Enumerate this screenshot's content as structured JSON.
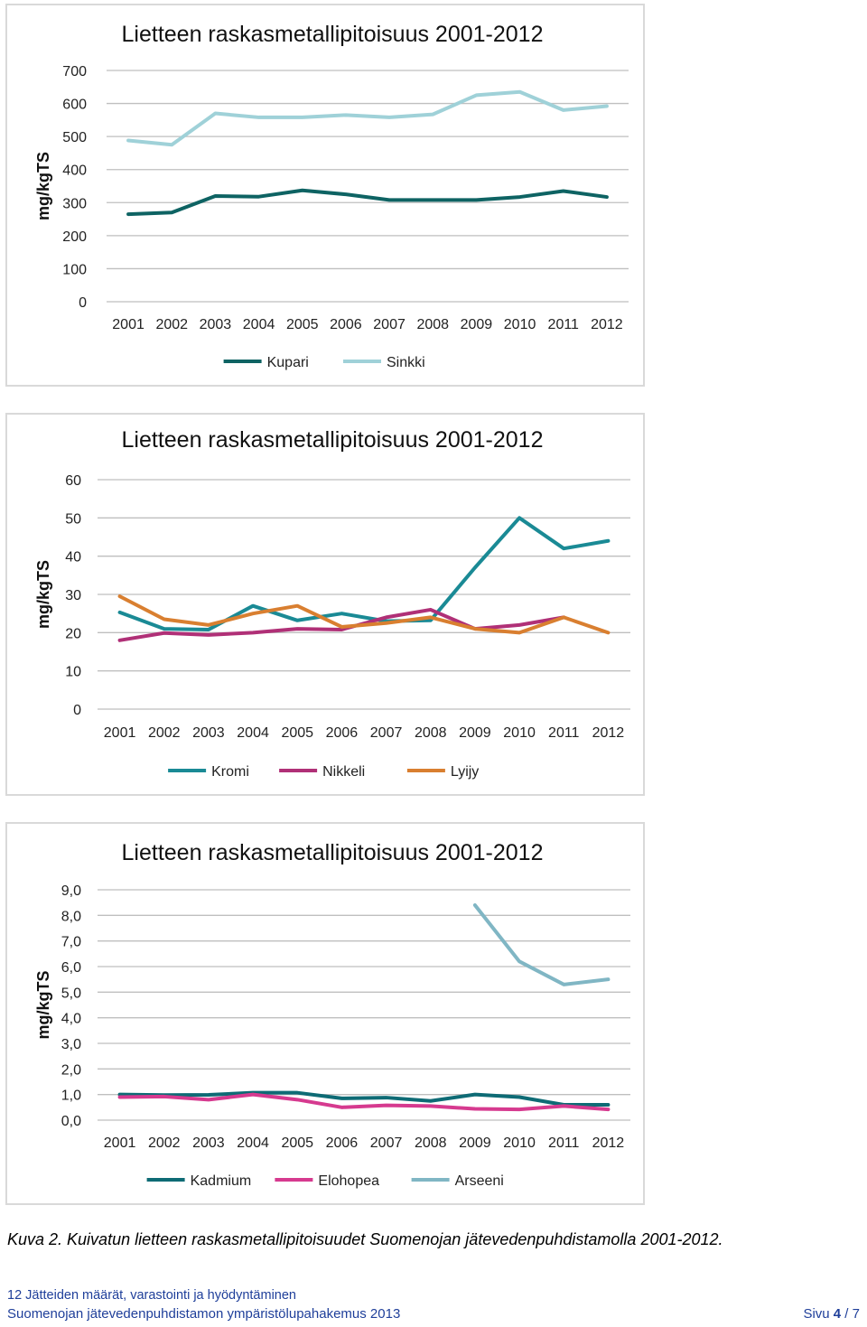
{
  "chart_data": [
    {
      "type": "line",
      "title": "Lietteen raskasmetallipitoisuus 2001-2012",
      "ylabel": "mg/kgTS",
      "xlabel": "",
      "ylim": [
        0,
        700
      ],
      "yticks": [
        0,
        100,
        200,
        300,
        400,
        500,
        600,
        700
      ],
      "ytick_labels": [
        "0",
        "100",
        "200",
        "300",
        "400",
        "500",
        "600",
        "700"
      ],
      "categories": [
        "2001",
        "2002",
        "2003",
        "2004",
        "2005",
        "2006",
        "2007",
        "2008",
        "2009",
        "2010",
        "2011",
        "2012"
      ],
      "series": [
        {
          "name": "Kupari",
          "color": "#0e6363",
          "values": [
            265,
            270,
            320,
            318,
            337,
            325,
            308,
            308,
            308,
            317,
            335,
            317
          ]
        },
        {
          "name": "Sinkki",
          "color": "#9fd1d8",
          "values": [
            488,
            475,
            570,
            558,
            558,
            565,
            558,
            567,
            625,
            635,
            580,
            592
          ]
        }
      ],
      "legend": "bottom"
    },
    {
      "type": "line",
      "title": "Lietteen raskasmetallipitoisuus 2001-2012",
      "ylabel": "mg/kgTS",
      "xlabel": "",
      "ylim": [
        0,
        60
      ],
      "yticks": [
        0,
        10,
        20,
        30,
        40,
        50,
        60
      ],
      "ytick_labels": [
        "0",
        "10",
        "20",
        "30",
        "40",
        "50",
        "60"
      ],
      "categories": [
        "2001",
        "2002",
        "2003",
        "2004",
        "2005",
        "2006",
        "2007",
        "2008",
        "2009",
        "2010",
        "2011",
        "2012"
      ],
      "series": [
        {
          "name": "Kromi",
          "color": "#1a8a95",
          "values": [
            25.3,
            21.0,
            20.8,
            27.0,
            23.2,
            25.0,
            23.0,
            23.2,
            37.0,
            50.0,
            42.0,
            44.0
          ]
        },
        {
          "name": "Nikkeli",
          "color": "#b03077",
          "values": [
            18.0,
            19.9,
            19.4,
            20.0,
            21.0,
            20.8,
            24.0,
            26.0,
            21.0,
            22.0,
            24.0,
            null
          ]
        },
        {
          "name": "Lyijy",
          "color": "#d97f30",
          "values": [
            29.5,
            23.5,
            22.0,
            25.0,
            27.0,
            21.5,
            22.5,
            24.0,
            21.0,
            20.0,
            24.0,
            20.0
          ]
        }
      ],
      "legend": "bottom"
    },
    {
      "type": "line",
      "title": "Lietteen raskasmetallipitoisuus 2001-2012",
      "ylabel": "mg/kgTS",
      "xlabel": "",
      "ylim": [
        0,
        9
      ],
      "yticks": [
        0,
        1,
        2,
        3,
        4,
        5,
        6,
        7,
        8,
        9
      ],
      "ytick_labels": [
        "0,0",
        "1,0",
        "2,0",
        "3,0",
        "4,0",
        "5,0",
        "6,0",
        "7,0",
        "8,0",
        "9,0"
      ],
      "categories": [
        "2001",
        "2002",
        "2003",
        "2004",
        "2005",
        "2006",
        "2007",
        "2008",
        "2009",
        "2010",
        "2011",
        "2012"
      ],
      "series": [
        {
          "name": "Kadmium",
          "color": "#0e6b75",
          "values": [
            1.0,
            0.98,
            0.99,
            1.07,
            1.07,
            0.85,
            0.88,
            0.75,
            1.0,
            0.9,
            0.6,
            0.6
          ]
        },
        {
          "name": "Elohopea",
          "color": "#d63a8f",
          "values": [
            0.9,
            0.92,
            0.8,
            1.0,
            0.8,
            0.5,
            0.58,
            0.55,
            0.44,
            0.42,
            0.55,
            0.42
          ]
        },
        {
          "name": "Arseeni",
          "color": "#80b6c4",
          "values": [
            null,
            null,
            null,
            null,
            null,
            null,
            null,
            null,
            8.4,
            6.2,
            5.3,
            5.5
          ]
        }
      ],
      "legend": "bottom"
    }
  ],
  "caption": "Kuva 2. Kuivatun lietteen raskasmetallipitoisuudet Suomenojan jätevedenpuhdistamolla 2001-2012.",
  "footer": {
    "line1": "12 Jätteiden määrät, varastointi ja hyödyntäminen",
    "line2": "Suomenojan jätevedenpuhdistamon ympäristölupahakemus 2013",
    "page_prefix": "Sivu ",
    "page_current": "4",
    "page_sep": " / ",
    "page_total": "7"
  }
}
